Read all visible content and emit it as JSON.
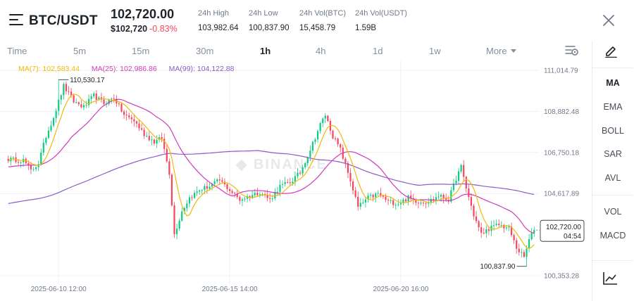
{
  "header": {
    "pair": "BTC/USDT",
    "last_price": "102,720.00",
    "usd_price": "$102,720",
    "change": "-0.83%",
    "stats": [
      {
        "label": "24h High",
        "value": "103,982.64"
      },
      {
        "label": "24h Low",
        "value": "100,837.90"
      },
      {
        "label": "24h Vol(BTC)",
        "value": "15,458.79"
      },
      {
        "label": "24h Vol(USDT)",
        "value": "1.59B"
      }
    ]
  },
  "intervals": {
    "items": [
      "Time",
      "5m",
      "15m",
      "30m",
      "1h",
      "4h",
      "1d",
      "1w"
    ],
    "selected": "1h",
    "more_label": "More"
  },
  "ma_legend": {
    "ma7": "MA(7): 102,583.44",
    "ma25": "MA(25): 102,986.86",
    "ma99": "MA(99): 104,122.88"
  },
  "chart_data": {
    "type": "candlestick",
    "price_scale": [
      "111,014.79",
      "108,882.48",
      "106,750.18",
      "104,617.89",
      "102,720.00",
      "100,353.28"
    ],
    "current_price_tag": {
      "price": "102,720.00",
      "countdown": "04:54"
    },
    "high_marker": "110,530.17",
    "low_marker": "100,837.90",
    "x_labels": [
      "2025-06-10 12:00",
      "2025-06-15 14:00",
      "2025-06-20 16:00"
    ],
    "ylim": [
      100353.28,
      111014.79
    ],
    "anchors": [
      [
        0,
        106400
      ],
      [
        6,
        106350
      ],
      [
        9,
        105800
      ],
      [
        12,
        106200
      ],
      [
        15,
        107600
      ],
      [
        18,
        108600
      ],
      [
        22,
        110200
      ],
      [
        26,
        109400
      ],
      [
        30,
        109100
      ],
      [
        34,
        109700
      ],
      [
        38,
        109300
      ],
      [
        42,
        109600
      ],
      [
        46,
        108700
      ],
      [
        50,
        108400
      ],
      [
        54,
        107700
      ],
      [
        58,
        107300
      ],
      [
        61,
        107500
      ],
      [
        64,
        105700
      ],
      [
        66,
        102500
      ],
      [
        69,
        103700
      ],
      [
        72,
        104400
      ],
      [
        76,
        104800
      ],
      [
        80,
        105000
      ],
      [
        84,
        105300
      ],
      [
        88,
        104800
      ],
      [
        92,
        104300
      ],
      [
        96,
        104500
      ],
      [
        100,
        104700
      ],
      [
        104,
        104300
      ],
      [
        108,
        105000
      ],
      [
        112,
        105200
      ],
      [
        116,
        105700
      ],
      [
        120,
        106900
      ],
      [
        124,
        108200
      ],
      [
        126,
        108700
      ],
      [
        129,
        107600
      ],
      [
        132,
        106900
      ],
      [
        136,
        105300
      ],
      [
        139,
        103900
      ],
      [
        143,
        104400
      ],
      [
        147,
        104600
      ],
      [
        151,
        104200
      ],
      [
        155,
        104100
      ],
      [
        159,
        104400
      ],
      [
        163,
        104200
      ],
      [
        167,
        104200
      ],
      [
        171,
        104500
      ],
      [
        175,
        104300
      ],
      [
        178,
        105400
      ],
      [
        180,
        106000
      ],
      [
        182,
        104900
      ],
      [
        185,
        103500
      ],
      [
        188,
        102500
      ],
      [
        191,
        102800
      ],
      [
        195,
        103000
      ],
      [
        199,
        102800
      ],
      [
        202,
        101800
      ],
      [
        205,
        101300
      ],
      [
        207,
        102200
      ],
      [
        209,
        102720
      ]
    ],
    "colors": {
      "up": "#0ecb81",
      "down": "#f6465d",
      "ma7": "#f0b90b",
      "ma25": "#d23aba",
      "ma99": "#8d5bc9",
      "grid": "#f0f1f2"
    }
  },
  "sidebar": {
    "indicators_main": [
      "MA",
      "EMA",
      "BOLL",
      "SAR",
      "AVL"
    ],
    "indicators_sub": [
      "VOL",
      "MACD"
    ],
    "active": "MA"
  }
}
